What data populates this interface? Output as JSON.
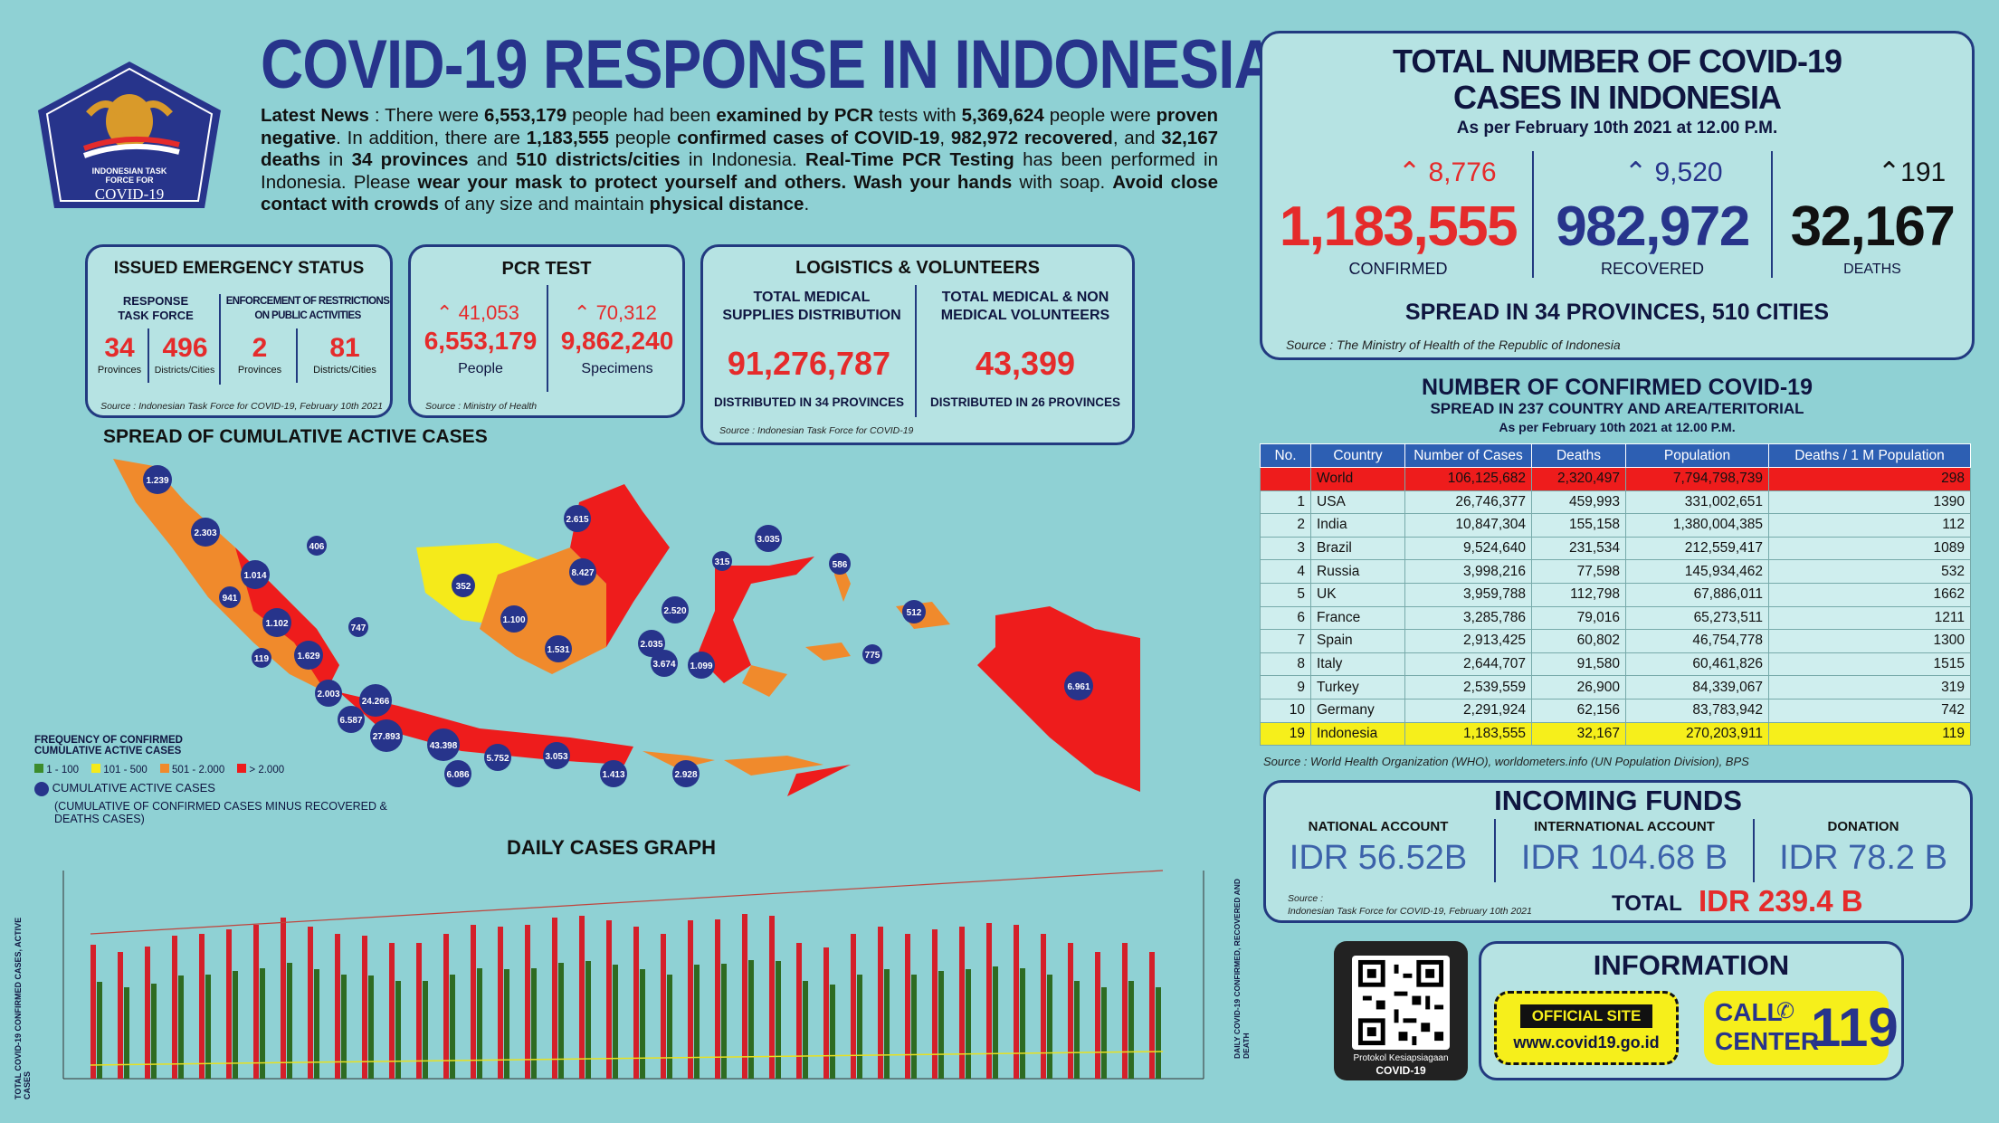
{
  "title": "COVID-19 RESPONSE IN INDONESIA",
  "logo": {
    "line1": "INDONESIAN TASK",
    "line2": "FORCE FOR",
    "line3": "COVID-19"
  },
  "news": {
    "lead": "Latest News",
    "p1": " : There were ",
    "n1": "6,553,179",
    "p2": " people had been ",
    "e1": "examined by PCR",
    "p3": " tests with ",
    "n2": "5,369,624",
    "p4": " people were ",
    "e2": "proven negative",
    "p5": ". In addition, there are ",
    "n3": "1,183,555",
    "p6": " people ",
    "e3": "confirmed cases of COVID-19",
    "p7": ", ",
    "n4": "982,972",
    "e4": "recovered",
    "p8": ", and ",
    "n5": "32,167",
    "e5": "deaths",
    "p9": " in ",
    "n6": "34",
    "e6": "provinces",
    "p10": " and ",
    "n7": "510",
    "e7": "districts/cities",
    "p11": " in Indonesia. ",
    "e8": "Real-Time PCR Testing",
    "p12": " has been performed in Indonesia. Please ",
    "e9": "wear your mask to protect yourself and others. Wash your hands",
    "p13": " with soap. ",
    "e10": "Avoid close contact with crowds",
    "p14": " of any size and maintain ",
    "e11": "physical distance",
    "p15": "."
  },
  "emergency": {
    "title": "ISSUED EMERGENCY STATUS",
    "left_head": "RESPONSE TASK FORCE",
    "right_head": "ENFORCEMENT OF RESTRICTIONS ON PUBLIC ACTIVITIES",
    "v1": "34",
    "l1": "Provinces",
    "v2": "496",
    "l2": "Districts/Cities",
    "v3": "2",
    "l3": "Provinces",
    "v4": "81",
    "l4": "Districts/Cities",
    "source": "Source : Indonesian Task Force for COVID-19, February 10th 2021"
  },
  "pcr": {
    "title": "PCR TEST",
    "inc1": "41,053",
    "v1": "6,553,179",
    "l1": "People",
    "inc2": "70,312",
    "v2": "9,862,240",
    "l2": "Specimens",
    "source": "Source : Ministry of Health"
  },
  "logistics": {
    "title": "LOGISTICS & VOLUNTEERS",
    "h1": "TOTAL MEDICAL SUPPLIES DISTRIBUTION",
    "v1": "91,276,787",
    "f1": "DISTRIBUTED IN 34 PROVINCES",
    "h2": "TOTAL MEDICAL & NON MEDICAL VOLUNTEERS",
    "v2": "43,399",
    "f2": "DISTRIBUTED IN 26 PROVINCES",
    "source": "Source : Indonesian Task Force for COVID-19"
  },
  "total": {
    "title1": "TOTAL NUMBER OF COVID-19",
    "title2": "CASES IN INDONESIA",
    "asof": "As per February 10th 2021 at 12.00 P.M.",
    "confirmed_inc": "8,776",
    "confirmed": "1,183,555",
    "confirmed_label": "CONFIRMED",
    "recovered_inc": "9,520",
    "recovered": "982,972",
    "recovered_label": "RECOVERED",
    "deaths_inc": "191",
    "deaths": "32,167",
    "deaths_label": "DEATHS",
    "spread": "SPREAD IN 34 PROVINCES, 510 CITIES",
    "source": "Source : The Ministry of Health of the Republic of Indonesia"
  },
  "world": {
    "title": "NUMBER OF CONFIRMED COVID-19",
    "subtitle": "SPREAD IN 237 COUNTRY AND AREA/TERITORIAL",
    "asof": "As per February 10th 2021 at 12.00 P.M.",
    "headers": [
      "No.",
      "Country",
      "Number of Cases",
      "Deaths",
      "Population",
      "Deaths / 1 M Population"
    ],
    "rows": [
      [
        "",
        "World",
        "106,125,682",
        "2,320,497",
        "7,794,798,739",
        "298"
      ],
      [
        "1",
        "USA",
        "26,746,377",
        "459,993",
        "331,002,651",
        "1390"
      ],
      [
        "2",
        "India",
        "10,847,304",
        "155,158",
        "1,380,004,385",
        "112"
      ],
      [
        "3",
        "Brazil",
        "9,524,640",
        "231,534",
        "212,559,417",
        "1089"
      ],
      [
        "4",
        "Russia",
        "3,998,216",
        "77,598",
        "145,934,462",
        "532"
      ],
      [
        "5",
        "UK",
        "3,959,788",
        "112,798",
        "67,886,011",
        "1662"
      ],
      [
        "6",
        "France",
        "3,285,786",
        "79,016",
        "65,273,511",
        "1211"
      ],
      [
        "7",
        "Spain",
        "2,913,425",
        "60,802",
        "46,754,778",
        "1300"
      ],
      [
        "8",
        "Italy",
        "2,644,707",
        "91,580",
        "60,461,826",
        "1515"
      ],
      [
        "9",
        "Turkey",
        "2,539,559",
        "26,900",
        "84,339,067",
        "319"
      ],
      [
        "10",
        "Germany",
        "2,291,924",
        "62,156",
        "83,783,942",
        "742"
      ],
      [
        "19",
        "Indonesia",
        "1,183,555",
        "32,167",
        "270,203,911",
        "119"
      ]
    ],
    "source": "Source : World Health Organization (WHO), worldometers.info (UN Population Division), BPS"
  },
  "funds": {
    "title": "INCOMING FUNDS",
    "l1": "NATIONAL ACCOUNT",
    "v1": "IDR 56.52B",
    "l2": "INTERNATIONAL ACCOUNT",
    "v2": "IDR 104.68 B",
    "l3": "DONATION",
    "v3": "IDR 78.2 B",
    "total_label": "TOTAL",
    "total": "IDR 239.4 B",
    "source_a": "Source :",
    "source_b": "Indonesian Task Force for COVID-19, February 10th 2021"
  },
  "info": {
    "title": "INFORMATION",
    "site_label": "OFFICIAL SITE",
    "site_url": "www.covid19.go.id",
    "call_a": "CALL",
    "call_b": "CENTER",
    "call_num": "119",
    "qr_line1": "Protokol Kesiapsiagaan",
    "qr_line2": "COVID-19"
  },
  "map": {
    "title": "SPREAD OF CUMULATIVE ACTIVE CASES",
    "legend_title1": "FREQUENCY OF CONFIRMED",
    "legend_title2": "CUMULATIVE ACTIVE CASES",
    "legend": [
      "1 - 100",
      "101 - 500",
      "501 - 2.000",
      "> 2.000"
    ],
    "legend_colors": [
      "#3c8c2c",
      "#f5ea1a",
      "#f08a2c",
      "#ee1c1c"
    ],
    "circle_label": "CUMULATIVE ACTIVE CASES",
    "circle_note": "(CUMULATIVE OF CONFIRMED CASES MINUS RECOVERED & DEATHS CASES)",
    "bubbles": [
      "1.239",
      "2.303",
      "1.014",
      "941",
      "1.102",
      "119",
      "1.629",
      "747",
      "406",
      "2.003",
      "24.266",
      "6.587",
      "27.893",
      "43.398",
      "6.086",
      "5.752",
      "3.053",
      "1.413",
      "2.928",
      "352",
      "1.100",
      "1.531",
      "2.615",
      "8.427",
      "315",
      "3.035",
      "2.520",
      "2.035",
      "3.674",
      "1.099",
      "586",
      "512",
      "775",
      "6.961"
    ]
  },
  "daily": {
    "title": "DAILY CASES GRAPH",
    "ylabel_left": "TOTAL COVID-19 CONFIRMED CASES, ACTIVE CASES",
    "ylabel_right": "DAILY COVID-19 CONFIRMED, RECOVERED AND DEATH"
  }
}
